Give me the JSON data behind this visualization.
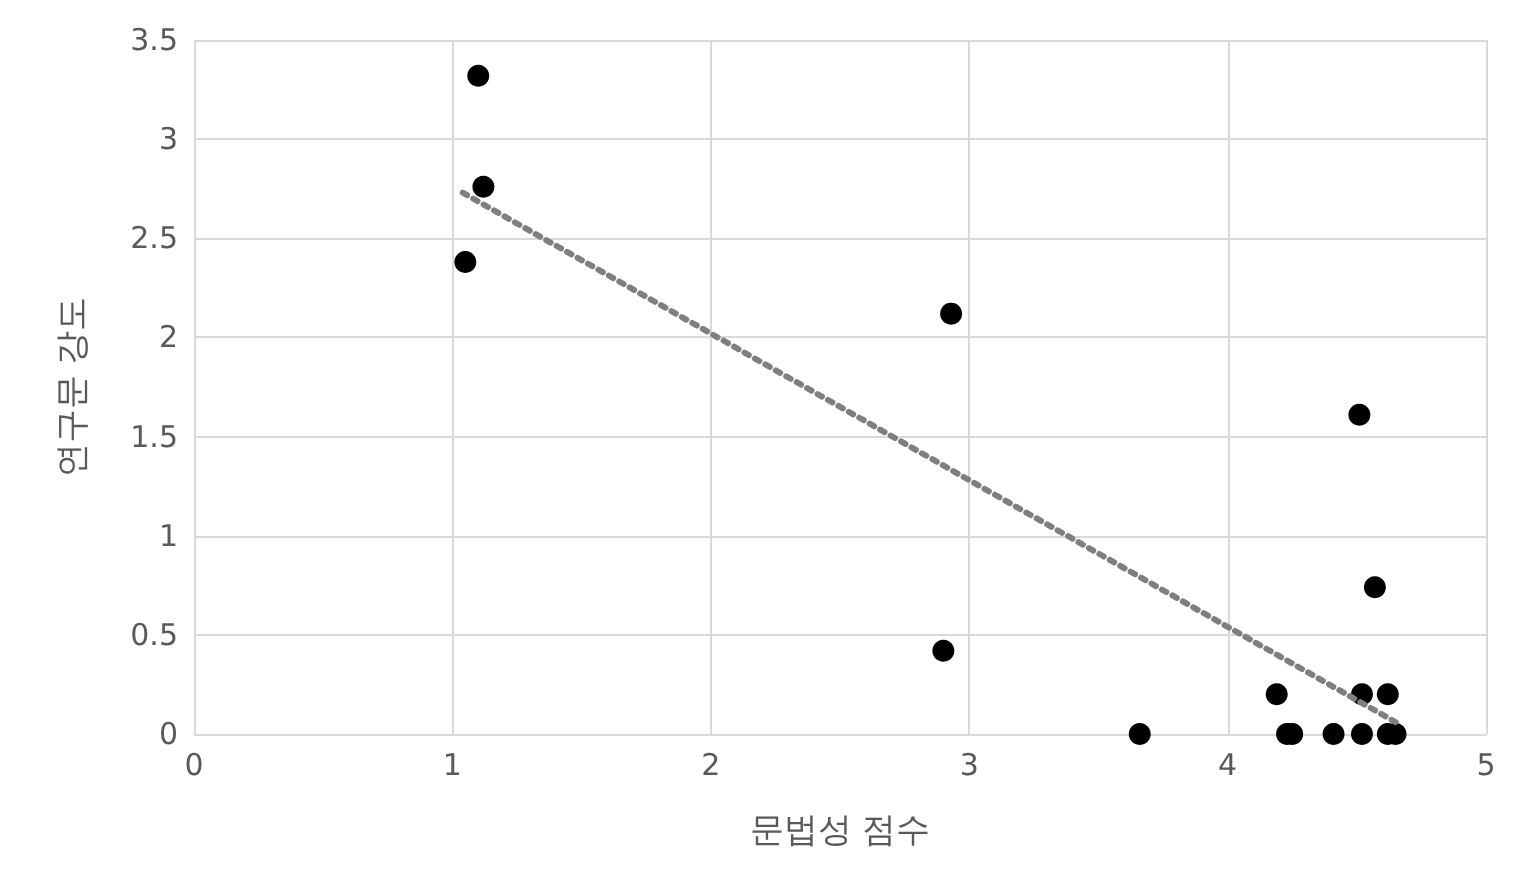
{
  "chart_data": {
    "type": "scatter",
    "xlabel": "문법성 점수",
    "ylabel": "연구문 강도",
    "xlim": [
      0,
      5
    ],
    "xticks": [
      0,
      1,
      2,
      3,
      4,
      5
    ],
    "ylim": [
      0,
      3.5
    ],
    "yticks": [
      0,
      0.5,
      1,
      1.5,
      2,
      2.5,
      3,
      3.5
    ],
    "grid": true,
    "marker": "circle",
    "series": [
      {
        "color": "#000000",
        "x": [
          1.1,
          1.12,
          1.05,
          2.93,
          2.9,
          3.66,
          4.19,
          4.23,
          4.25,
          4.41,
          4.51,
          4.52,
          4.52,
          4.57,
          4.62,
          4.62,
          4.65
        ],
        "values": [
          3.32,
          2.76,
          2.38,
          2.12,
          0.42,
          0,
          0.2,
          0,
          0,
          0,
          1.61,
          0.2,
          0,
          0.74,
          0.2,
          0,
          0
        ]
      },
      {
        "type": "line",
        "color": "#7f7f7f",
        "line_style": "dotted",
        "marker": "none",
        "x": [
          1.04,
          4.65
        ],
        "values": [
          2.73,
          0.06
        ]
      }
    ]
  }
}
